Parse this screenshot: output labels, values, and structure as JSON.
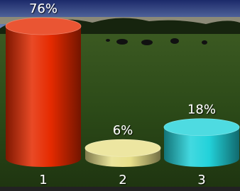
{
  "chart_data": {
    "type": "bar3d",
    "categories": [
      "1",
      "2",
      "3"
    ],
    "values": [
      76,
      6,
      18
    ],
    "value_labels": [
      "76%",
      "6%",
      "18%"
    ],
    "colors": [
      "#e52a00",
      "#e8e08a",
      "#22d2da"
    ]
  }
}
